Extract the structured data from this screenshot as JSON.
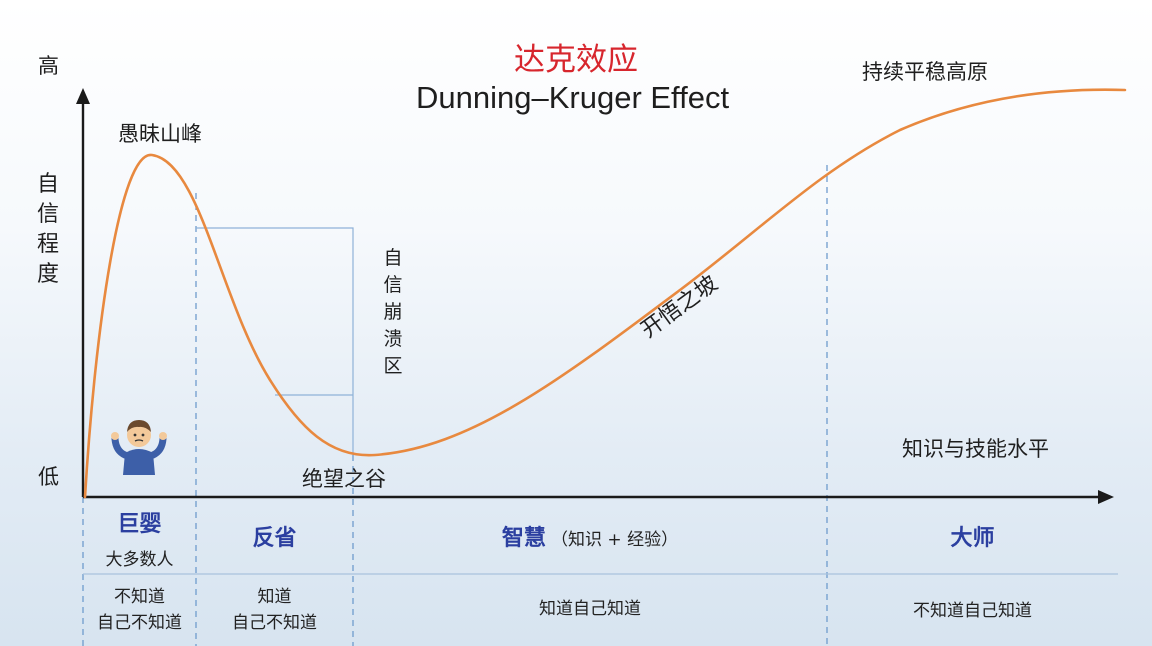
{
  "title_cn": "达克效应",
  "title_en": "Dunning–Kruger Effect",
  "y_axis": {
    "high": "高",
    "low": "低",
    "label": "自信程度"
  },
  "x_axis": {
    "label": "知识与技能水平"
  },
  "curve_labels": {
    "peak": "愚昧山峰",
    "valley": "绝望之谷",
    "slope": "开悟之坡",
    "plateau": "持续平稳高原",
    "collapse_zone": "自信崩溃区"
  },
  "stages": [
    {
      "name": "巨婴",
      "note": "大多数人",
      "knowledge": [
        "不知道",
        "自己不知道"
      ]
    },
    {
      "name": "反省",
      "note": "",
      "knowledge": [
        "知道",
        "自己不知道"
      ]
    },
    {
      "name": "智慧",
      "note": "（知识 + 经验）",
      "knowledge": [
        "知道自己知道"
      ]
    },
    {
      "name": "大师",
      "note": "",
      "knowledge": [
        "不知道自己知道"
      ]
    }
  ],
  "colors": {
    "curve": "#e8893f",
    "title_cn": "#d7262d",
    "stage": "#2b3fa0",
    "axis": "#1a1a1a",
    "guide": "#6f9ccd"
  },
  "icons": [
    "shrug-person-icon"
  ]
}
